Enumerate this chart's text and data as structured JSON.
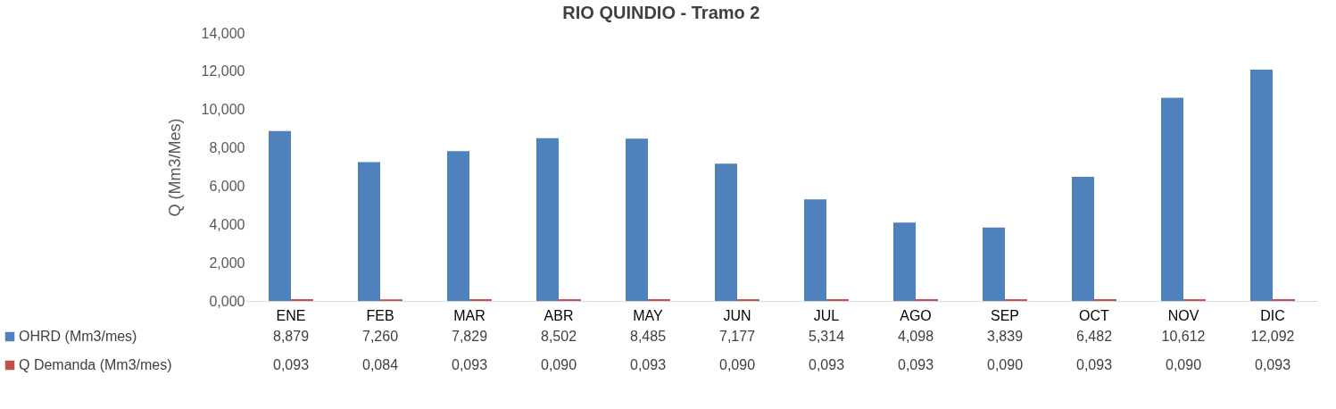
{
  "chart_data": {
    "type": "bar",
    "title": "RIO QUINDIO - Tramo 2",
    "ylabel": "Q (Mm3/Mes)",
    "categories": [
      "ENE",
      "FEB",
      "MAR",
      "ABR",
      "MAY",
      "JUN",
      "JUL",
      "AGO",
      "SEP",
      "OCT",
      "NOV",
      "DIC"
    ],
    "series": [
      {
        "name": "OHRD (Mm3/mes)",
        "color": "#4f81bd",
        "values": [
          8.879,
          7.26,
          7.829,
          8.502,
          8.485,
          7.177,
          5.314,
          4.098,
          3.839,
          6.482,
          10.612,
          12.092
        ],
        "value_labels": [
          "8,879",
          "7,260",
          "7,829",
          "8,502",
          "8,485",
          "7,177",
          "5,314",
          "4,098",
          "3,839",
          "6,482",
          "10,612",
          "12,092"
        ]
      },
      {
        "name": "Q Demanda (Mm3/mes)",
        "color": "#c0504d",
        "values": [
          0.093,
          0.084,
          0.093,
          0.09,
          0.093,
          0.09,
          0.093,
          0.093,
          0.09,
          0.093,
          0.09,
          0.093
        ],
        "value_labels": [
          "0,093",
          "0,084",
          "0,093",
          "0,090",
          "0,093",
          "0,090",
          "0,093",
          "0,093",
          "0,090",
          "0,093",
          "0,090",
          "0,093"
        ]
      }
    ],
    "ylim": [
      0,
      14
    ],
    "yticks": [
      {
        "value": 0,
        "label": "0,000"
      },
      {
        "value": 2,
        "label": "2,000"
      },
      {
        "value": 4,
        "label": "4,000"
      },
      {
        "value": 6,
        "label": "6,000"
      },
      {
        "value": 8,
        "label": "8,000"
      },
      {
        "value": 10,
        "label": "10,000"
      },
      {
        "value": 12,
        "label": "12,000"
      },
      {
        "value": 14,
        "label": "14,000"
      }
    ],
    "grid": false,
    "legend": "bottom"
  }
}
